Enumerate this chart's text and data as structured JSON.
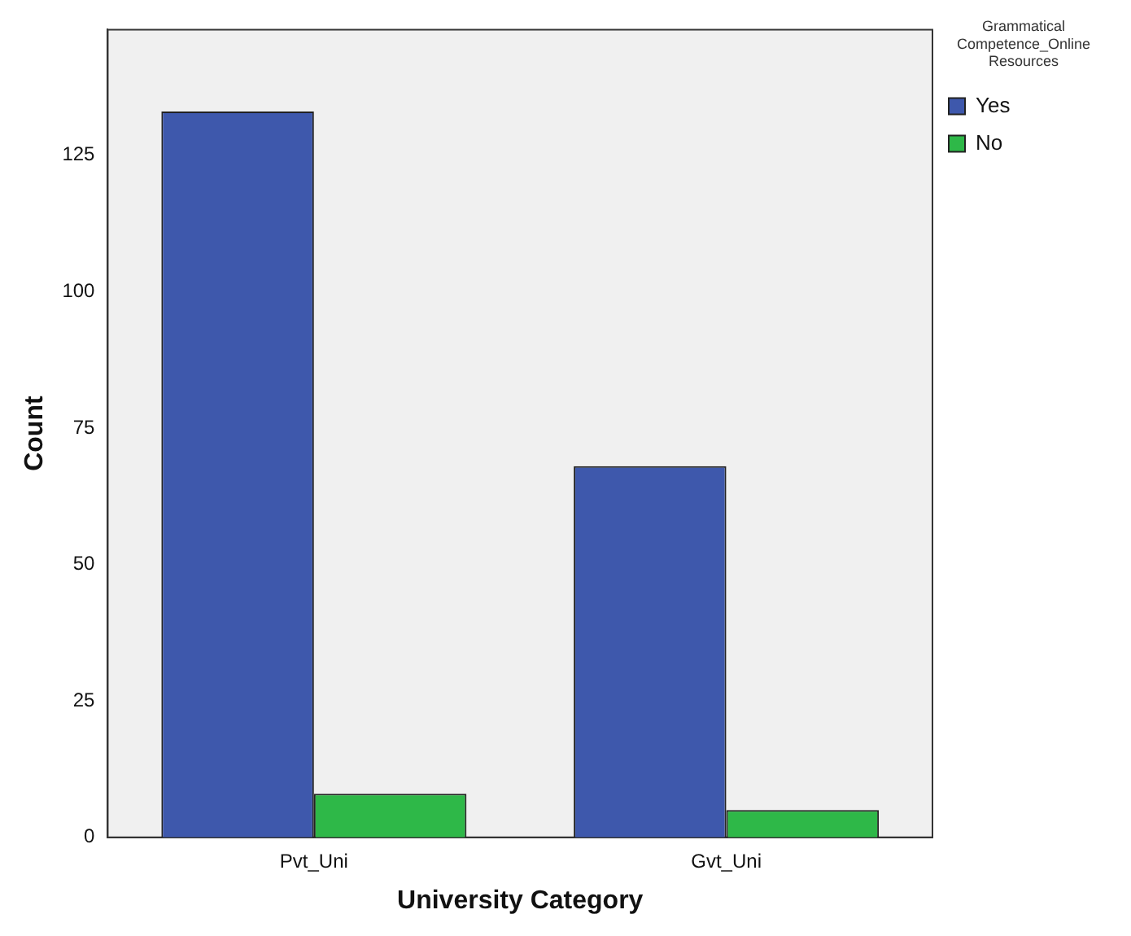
{
  "chart_data": {
    "type": "bar",
    "xlabel": "University Category",
    "ylabel": "Count",
    "legend_title": "Grammatical Competence_Online Resources",
    "categories": [
      "Pvt_Uni",
      "Gvt_Uni"
    ],
    "series": [
      {
        "name": "Yes",
        "color": "#3e58ac",
        "values": [
          133,
          68
        ]
      },
      {
        "name": "No",
        "color": "#2eb848",
        "values": [
          8,
          5
        ]
      }
    ],
    "ylim": [
      0,
      148
    ],
    "yticks": [
      0,
      25,
      50,
      75,
      100,
      125
    ],
    "grid": false,
    "legend": "top right"
  }
}
